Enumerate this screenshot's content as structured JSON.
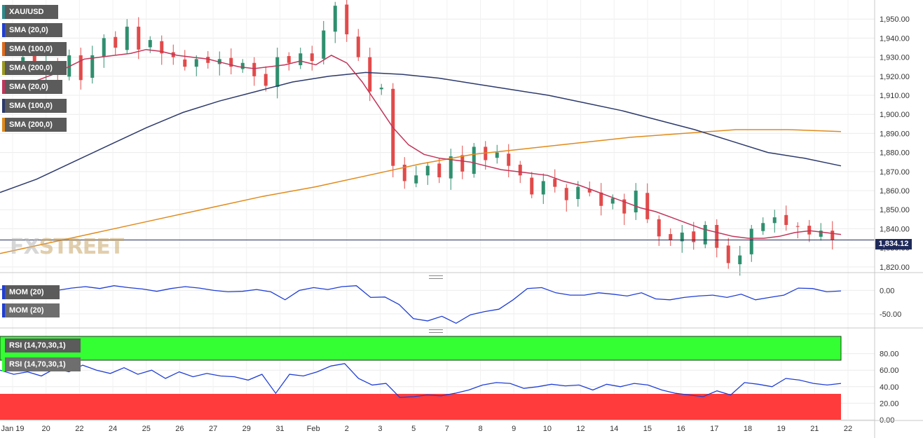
{
  "legends": {
    "symbol": "XAU/USD",
    "main": [
      "SMA (20,0)",
      "SMA (100,0)",
      "SMA (200,0)",
      "SMA (20,0)",
      "SMA (100,0)",
      "SMA (200,0)"
    ],
    "mom": [
      "MOM (20)",
      "MOM (20)"
    ],
    "rsi": [
      "RSI (14,70,30,1)",
      "RSI (14,70,30,1)"
    ]
  },
  "watermark": {
    "fx": "FX",
    "street": "STREET"
  },
  "current_price": "1,834.12",
  "colors": {
    "up": "#2f8f6f",
    "down": "#e24a4a",
    "sma20": "#c0355a",
    "sma100": "#2d3a6b",
    "sma200": "#e08a1a",
    "mom": "#1f3ed6",
    "rsi": "#1f3ed6",
    "overbought": "#33ff33",
    "oversold": "#ff3b3b",
    "price_line": "#1f2a5a"
  },
  "chart_data": [
    {
      "type": "candlestick",
      "title": "XAU/USD",
      "x_ticks": [
        "Jan 19",
        "20",
        "22",
        "24",
        "25",
        "26",
        "27",
        "29",
        "31",
        "Feb",
        "2",
        "3",
        "5",
        "7",
        "8",
        "9",
        "10",
        "12",
        "14",
        "15",
        "16",
        "17",
        "18",
        "19",
        "21",
        "22"
      ],
      "y_ticks": [
        "1,820.00",
        "1,830.00",
        "1,840.00",
        "1,850.00",
        "1,860.00",
        "1,870.00",
        "1,880.00",
        "1,890.00",
        "1,900.00",
        "1,910.00",
        "1,920.00",
        "1,930.00",
        "1,940.00",
        "1,950.00"
      ],
      "ylim": [
        1817,
        1960
      ],
      "last_price": 1834.12,
      "close_path": [
        1926,
        1930,
        1924,
        1927,
        1921,
        1931,
        1918,
        1931,
        1940,
        1935,
        1946,
        1934,
        1939,
        1932,
        1930,
        1925,
        1929,
        1927,
        1929,
        1925,
        1927,
        1920,
        1915,
        1930,
        1927,
        1932,
        1928,
        1944,
        1957,
        1942,
        1930,
        1912,
        1914,
        1873,
        1865,
        1868,
        1873,
        1867,
        1878,
        1870,
        1883,
        1876,
        1880,
        1873,
        1868,
        1858,
        1865,
        1862,
        1855,
        1862,
        1859,
        1852,
        1856,
        1848,
        1860,
        1845,
        1836,
        1834,
        1838,
        1833,
        1842,
        1830,
        1822,
        1826,
        1840,
        1843,
        1846,
        1842,
        1841,
        1837,
        1839,
        1834.12
      ],
      "sma20_path": [
        1912,
        1915,
        1918,
        1921,
        1925,
        1929,
        1930,
        1931,
        1932,
        1934,
        1933,
        1931,
        1930,
        1929,
        1927,
        1925,
        1924,
        1925,
        1926,
        1928,
        1926,
        1931,
        1927,
        1917,
        1905,
        1893,
        1884,
        1879,
        1877,
        1876,
        1875,
        1873,
        1871,
        1870,
        1869,
        1868,
        1865,
        1863,
        1860,
        1857,
        1854,
        1851,
        1849,
        1846,
        1843,
        1840,
        1838,
        1836,
        1835,
        1835,
        1836,
        1838,
        1839,
        1838,
        1837
      ],
      "sma100_path": [
        1859,
        1866,
        1875,
        1884,
        1893,
        1901,
        1907,
        1912,
        1917,
        1920,
        1922,
        1921,
        1919,
        1916,
        1913,
        1910,
        1906,
        1902,
        1897,
        1892,
        1886,
        1880,
        1877,
        1873
      ],
      "sma200_path": [
        1827,
        1833,
        1839,
        1845,
        1851,
        1857,
        1862,
        1868,
        1874,
        1879,
        1882,
        1885,
        1888,
        1890,
        1892,
        1892,
        1891
      ],
      "series": [
        {
          "name": "SMA (20,0)"
        },
        {
          "name": "SMA (100,0)"
        },
        {
          "name": "SMA (200,0)"
        }
      ]
    },
    {
      "type": "line",
      "title": "MOM (20)",
      "y_ticks": [
        "-50.00",
        "0.00"
      ],
      "ylim": [
        -80,
        20
      ],
      "series": [
        {
          "name": "MOM (20)",
          "values": [
            2,
            4,
            -5,
            3,
            0,
            5,
            8,
            4,
            10,
            6,
            3,
            -2,
            4,
            8,
            5,
            0,
            -3,
            -2,
            2,
            -3,
            -20,
            0,
            6,
            2,
            8,
            10,
            -15,
            -14,
            -30,
            -60,
            -65,
            -55,
            -70,
            -52,
            -45,
            -40,
            -20,
            4,
            6,
            -5,
            -10,
            -10,
            -5,
            -8,
            -12,
            -5,
            -18,
            -20,
            -15,
            -12,
            -10,
            -15,
            -8,
            -20,
            -15,
            -10,
            5,
            4,
            -3,
            -1
          ]
        }
      ]
    },
    {
      "type": "line",
      "title": "RSI (14,70,30,1)",
      "y_ticks": [
        "0.00",
        "20.00",
        "40.00",
        "60.00",
        "80.00"
      ],
      "ylim": [
        0,
        100
      ],
      "overbought": 70,
      "oversold": 30,
      "series": [
        {
          "name": "RSI (14,70,30,1)",
          "values": [
            60,
            55,
            58,
            53,
            62,
            58,
            66,
            60,
            56,
            63,
            55,
            60,
            50,
            58,
            52,
            56,
            53,
            52,
            48,
            55,
            32,
            55,
            53,
            58,
            65,
            68,
            50,
            42,
            44,
            27,
            28,
            30,
            29,
            32,
            36,
            42,
            45,
            44,
            38,
            40,
            43,
            41,
            42,
            36,
            43,
            40,
            44,
            42,
            36,
            32,
            30,
            28,
            35,
            30,
            45,
            43,
            40,
            50,
            48,
            44,
            42,
            44
          ]
        }
      ]
    }
  ]
}
